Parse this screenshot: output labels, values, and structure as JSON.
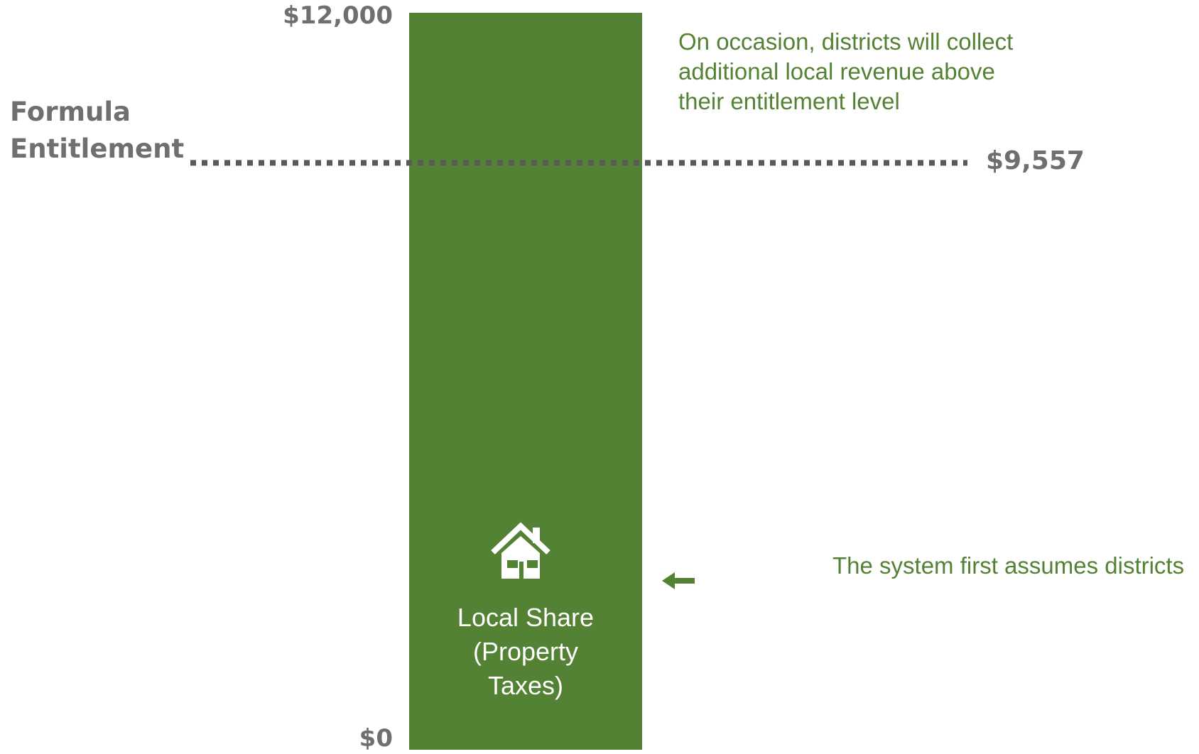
{
  "chart_data": {
    "type": "bar",
    "categories": [
      ""
    ],
    "series": [
      {
        "values": [
          12000
        ]
      }
    ],
    "segment_label": [
      "Local Share",
      "(Property",
      "Taxes)"
    ],
    "ylim": [
      0,
      12000
    ],
    "y_tick_labels": [
      "$12,000",
      "$0"
    ],
    "reference_line": {
      "label_lines": [
        "Formula",
        "Entitlement"
      ],
      "value": 9557,
      "value_label": "$9,557",
      "style": "dotted"
    },
    "annotations": [
      [
        "On occasion, districts will collect",
        "additional local revenue above",
        "their entitlement level"
      ],
      [
        "The system first assumes districts"
      ]
    ],
    "grid": false,
    "legend": "none",
    "colors": {
      "bar": "#548235",
      "annotation_text": "#548235",
      "axis_text": "#6f6f6f",
      "reference_line": "#595959",
      "bar_text": "#ffffff"
    },
    "icons": [
      "house-icon",
      "arrow-left-icon"
    ]
  }
}
